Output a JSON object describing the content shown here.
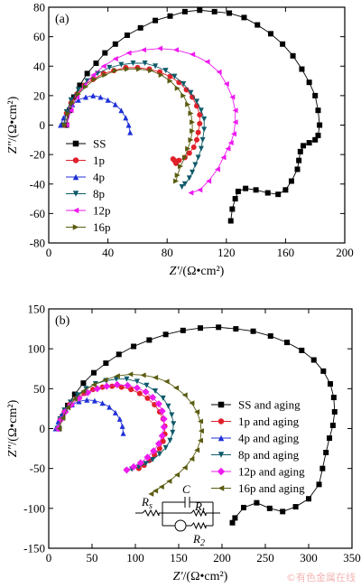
{
  "watermark": "©有色金属在线",
  "chart_data": [
    {
      "type": "scatter",
      "panel_label": "(a)",
      "xlabel": "Z′/(Ω•cm²)",
      "ylabel": "Z″/(Ω•cm²)",
      "xlim": [
        0,
        200
      ],
      "ylim": [
        -80,
        80
      ],
      "xticks": [
        0,
        40,
        80,
        120,
        160,
        200
      ],
      "yticks": [
        -80,
        -60,
        -40,
        -20,
        0,
        20,
        40,
        60,
        80
      ],
      "legend_position": "left",
      "series": [
        {
          "name": "SS",
          "color": "#000000",
          "marker": "square",
          "x": [
            12,
            14,
            17,
            21,
            26,
            32,
            38,
            45,
            53,
            62,
            72,
            82,
            92,
            102,
            112,
            122,
            132,
            141,
            150,
            158,
            165,
            171,
            176,
            180,
            182,
            183,
            182,
            180,
            176,
            172,
            170,
            169,
            168,
            164,
            160,
            155,
            148,
            140,
            133,
            128,
            126,
            124,
            123
          ],
          "y": [
            0,
            10,
            19,
            27,
            35,
            42,
            49,
            55,
            61,
            66,
            71,
            74,
            77,
            78,
            77,
            76,
            73,
            68,
            62,
            55,
            47,
            38,
            29,
            20,
            10,
            0,
            -7,
            -10,
            -12,
            -14,
            -18,
            -24,
            -30,
            -38,
            -44,
            -47,
            -46,
            -44,
            -43,
            -45,
            -50,
            -57,
            -65
          ]
        },
        {
          "name": "1p",
          "color": "#e0202a",
          "marker": "circle",
          "x": [
            10,
            12,
            15,
            19,
            24,
            30,
            37,
            44,
            52,
            60,
            68,
            75,
            82,
            88,
            93,
            97,
            100,
            102,
            102,
            101,
            100,
            98,
            95,
            92,
            88,
            86,
            85,
            84
          ],
          "y": [
            0,
            8,
            15,
            21,
            27,
            31,
            35,
            37,
            39,
            39,
            38,
            36,
            33,
            29,
            24,
            19,
            13,
            7,
            1,
            -5,
            -10,
            -15,
            -19,
            -22,
            -24,
            -26,
            -24,
            -23
          ]
        },
        {
          "name": "4p",
          "color": "#1f2fd6",
          "marker": "triangle-up",
          "x": [
            8,
            10,
            13,
            16,
            20,
            25,
            30,
            35,
            40,
            45,
            49,
            52,
            54,
            55
          ],
          "y": [
            0,
            5,
            10,
            14,
            17,
            19,
            20,
            19,
            17,
            14,
            10,
            5,
            0,
            -5
          ]
        },
        {
          "name": "8p",
          "color": "#0e5a6a",
          "marker": "triangle-down",
          "x": [
            10,
            12,
            15,
            20,
            26,
            33,
            41,
            49,
            57,
            65,
            72,
            79,
            85,
            91,
            96,
            100,
            103,
            105,
            105,
            104,
            103,
            101,
            99,
            97,
            95,
            92,
            90
          ],
          "y": [
            0,
            9,
            17,
            24,
            30,
            35,
            39,
            41,
            42,
            42,
            40,
            37,
            33,
            28,
            22,
            16,
            10,
            4,
            -3,
            -10,
            -16,
            -22,
            -27,
            -32,
            -36,
            -40,
            -42
          ]
        },
        {
          "name": "12p",
          "color": "#ee1aee",
          "marker": "triangle-left",
          "x": [
            12,
            15,
            19,
            24,
            30,
            37,
            45,
            54,
            64,
            75,
            86,
            97,
            107,
            115,
            120,
            124,
            126,
            126,
            125,
            123,
            121,
            118,
            114,
            108,
            102,
            96
          ],
          "y": [
            0,
            10,
            19,
            27,
            34,
            40,
            45,
            49,
            51,
            52,
            51,
            48,
            43,
            36,
            28,
            19,
            10,
            2,
            -6,
            -12,
            -16,
            -22,
            -30,
            -38,
            -44,
            -46
          ]
        },
        {
          "name": "16p",
          "color": "#5a5b10",
          "marker": "triangle-right",
          "x": [
            11,
            13,
            16,
            20,
            25,
            31,
            38,
            45,
            53,
            61,
            69,
            76,
            82,
            87,
            91,
            94,
            96,
            97,
            97,
            96,
            94,
            92,
            89,
            87,
            86
          ],
          "y": [
            0,
            8,
            15,
            21,
            26,
            31,
            34,
            37,
            38,
            38,
            37,
            34,
            30,
            25,
            20,
            14,
            8,
            2,
            -4,
            -10,
            -16,
            -22,
            -28,
            -34,
            -38
          ]
        }
      ]
    },
    {
      "type": "scatter",
      "panel_label": "(b)",
      "xlabel": "Z′/(Ω•cm²)",
      "ylabel": "Z″/(Ω•cm²)",
      "xlim": [
        0,
        350
      ],
      "ylim": [
        -150,
        150
      ],
      "xticks": [
        0,
        50,
        100,
        150,
        200,
        250,
        300,
        350
      ],
      "yticks": [
        -150,
        -100,
        -50,
        0,
        50,
        100,
        150
      ],
      "legend_position": "right",
      "circuit_labels": {
        "c": "C",
        "rs": "Rs",
        "rt": "Rt",
        "r2": "R2"
      },
      "series": [
        {
          "name": "SS and aging",
          "color": "#000000",
          "marker": "square",
          "x": [
            12,
            16,
            22,
            30,
            40,
            52,
            66,
            81,
            98,
            116,
            135,
            155,
            175,
            196,
            216,
            236,
            256,
            275,
            292,
            306,
            317,
            325,
            329,
            330,
            328,
            324,
            320,
            316,
            312,
            300,
            285,
            270,
            255,
            240,
            225,
            215,
            212
          ],
          "y": [
            0,
            15,
            29,
            43,
            57,
            70,
            82,
            93,
            103,
            111,
            118,
            123,
            126,
            127,
            125,
            122,
            116,
            108,
            98,
            86,
            72,
            56,
            39,
            21,
            4,
            -12,
            -30,
            -50,
            -70,
            -88,
            -98,
            -104,
            -100,
            -93,
            -99,
            -112,
            -118
          ]
        },
        {
          "name": "1p and aging",
          "color": "#e0202a",
          "marker": "circle",
          "x": [
            10,
            13,
            18,
            24,
            32,
            41,
            51,
            62,
            73,
            84,
            95,
            105,
            114,
            122,
            128,
            132,
            134,
            134,
            132,
            128,
            122,
            116,
            110,
            104
          ],
          "y": [
            0,
            11,
            21,
            30,
            38,
            44,
            49,
            52,
            53,
            52,
            49,
            44,
            38,
            30,
            21,
            12,
            3,
            -7,
            -16,
            -25,
            -33,
            -40,
            -46,
            -50
          ]
        },
        {
          "name": "4p and aging",
          "color": "#1f2fd6",
          "marker": "triangle-up",
          "x": [
            8,
            11,
            15,
            20,
            27,
            35,
            44,
            53,
            62,
            70,
            77,
            82,
            85,
            86
          ],
          "y": [
            0,
            9,
            17,
            24,
            30,
            34,
            36,
            35,
            32,
            27,
            20,
            12,
            3,
            -6
          ]
        },
        {
          "name": "8p and aging",
          "color": "#0e5a6a",
          "marker": "triangle-down",
          "x": [
            10,
            13,
            18,
            25,
            33,
            43,
            54,
            66,
            78,
            90,
            102,
            113,
            123,
            132,
            138,
            142,
            144,
            143,
            140,
            135,
            128,
            120,
            112,
            104,
            96,
            90
          ],
          "y": [
            0,
            12,
            23,
            33,
            42,
            50,
            56,
            60,
            62,
            62,
            59,
            54,
            47,
            38,
            28,
            17,
            6,
            -5,
            -15,
            -24,
            -32,
            -39,
            -44,
            -48,
            -51,
            -53
          ]
        },
        {
          "name": "12p and aging",
          "color": "#ee1aee",
          "marker": "diamond",
          "x": [
            11,
            14,
            19,
            26,
            35,
            45,
            56,
            67,
            79,
            91,
            102,
            112,
            120,
            127,
            131,
            133,
            133,
            131,
            127,
            121,
            114,
            106,
            98,
            90
          ],
          "y": [
            0,
            11,
            21,
            30,
            38,
            45,
            50,
            53,
            55,
            54,
            51,
            46,
            39,
            31,
            22,
            12,
            2,
            -9,
            -19,
            -28,
            -36,
            -43,
            -48,
            -52
          ]
        },
        {
          "name": "16p and aging",
          "color": "#5a5b10",
          "marker": "triangle-left",
          "x": [
            12,
            16,
            22,
            30,
            40,
            52,
            65,
            79,
            94,
            109,
            123,
            136,
            147,
            157,
            165,
            171,
            175,
            176,
            175,
            171,
            165,
            157,
            148,
            139,
            130,
            123,
            118
          ],
          "y": [
            0,
            13,
            26,
            37,
            47,
            55,
            61,
            66,
            68,
            67,
            64,
            59,
            51,
            42,
            32,
            21,
            9,
            -3,
            -15,
            -27,
            -38,
            -49,
            -58,
            -66,
            -73,
            -78,
            -82
          ]
        }
      ]
    }
  ]
}
